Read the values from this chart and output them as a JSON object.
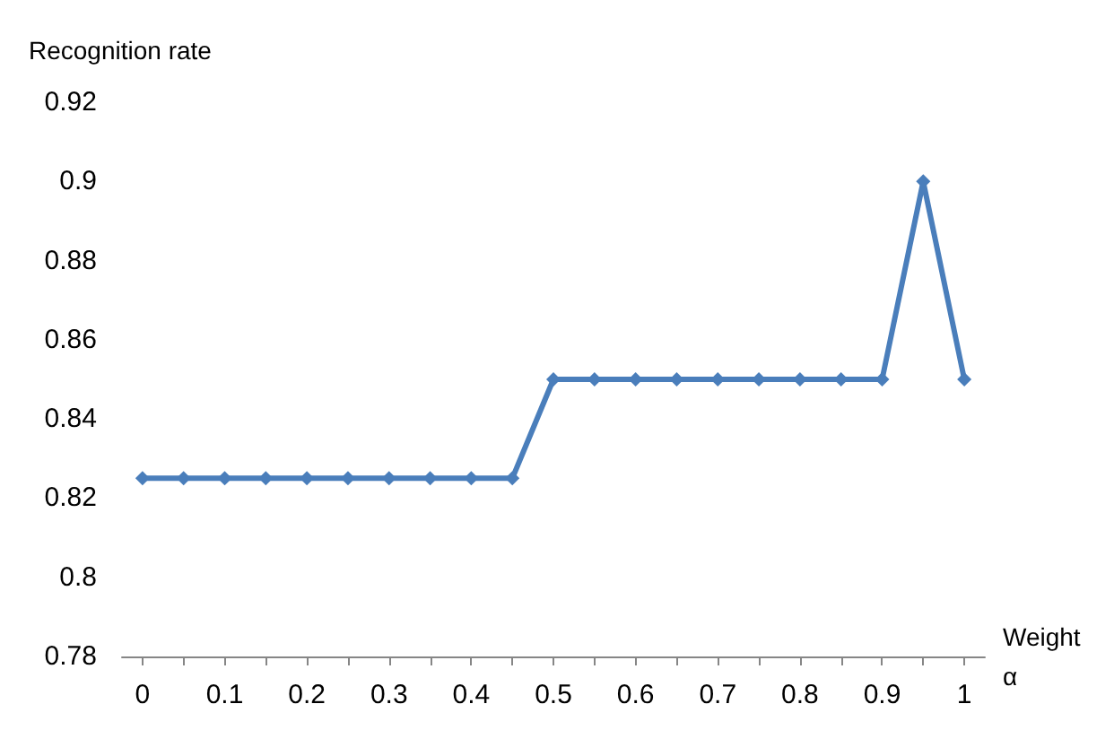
{
  "chart_data": {
    "type": "line",
    "ylabel": "Recognition rate",
    "xlabel": "Weight\nα",
    "categories": [
      "0",
      null,
      "0.1",
      null,
      "0.2",
      null,
      "0.3",
      null,
      "0.4",
      null,
      "0.5",
      null,
      "0.6",
      null,
      "0.7",
      null,
      "0.8",
      null,
      "0.9",
      null,
      "1"
    ],
    "series": [
      {
        "color": "#4a7ebb",
        "values": [
          0.825,
          0.825,
          0.825,
          0.825,
          0.825,
          0.825,
          0.825,
          0.825,
          0.825,
          0.825,
          0.85,
          0.85,
          0.85,
          0.85,
          0.85,
          0.85,
          0.85,
          0.85,
          0.85,
          0.9,
          0.85
        ]
      }
    ],
    "ylim": [
      0.78,
      0.92
    ],
    "yticks": [
      0.78,
      0.8,
      0.82,
      0.84,
      0.86,
      0.88,
      0.9,
      0.92
    ],
    "grid": false,
    "marker": "diamond",
    "line_style": "solid"
  }
}
